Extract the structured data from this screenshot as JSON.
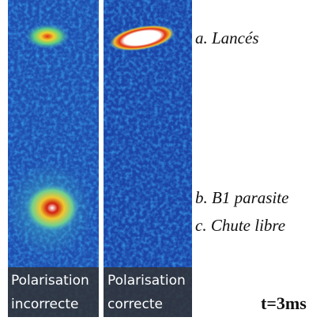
{
  "panels": [
    {
      "caption": [
        "Polarisation",
        "incorrecte"
      ]
    },
    {
      "caption": [
        "Polarisation",
        "correcte"
      ]
    }
  ],
  "annotations": [
    "a. Lancés",
    "b. B1 parasite",
    "c. Chute libre"
  ],
  "time": "t=3ms"
}
